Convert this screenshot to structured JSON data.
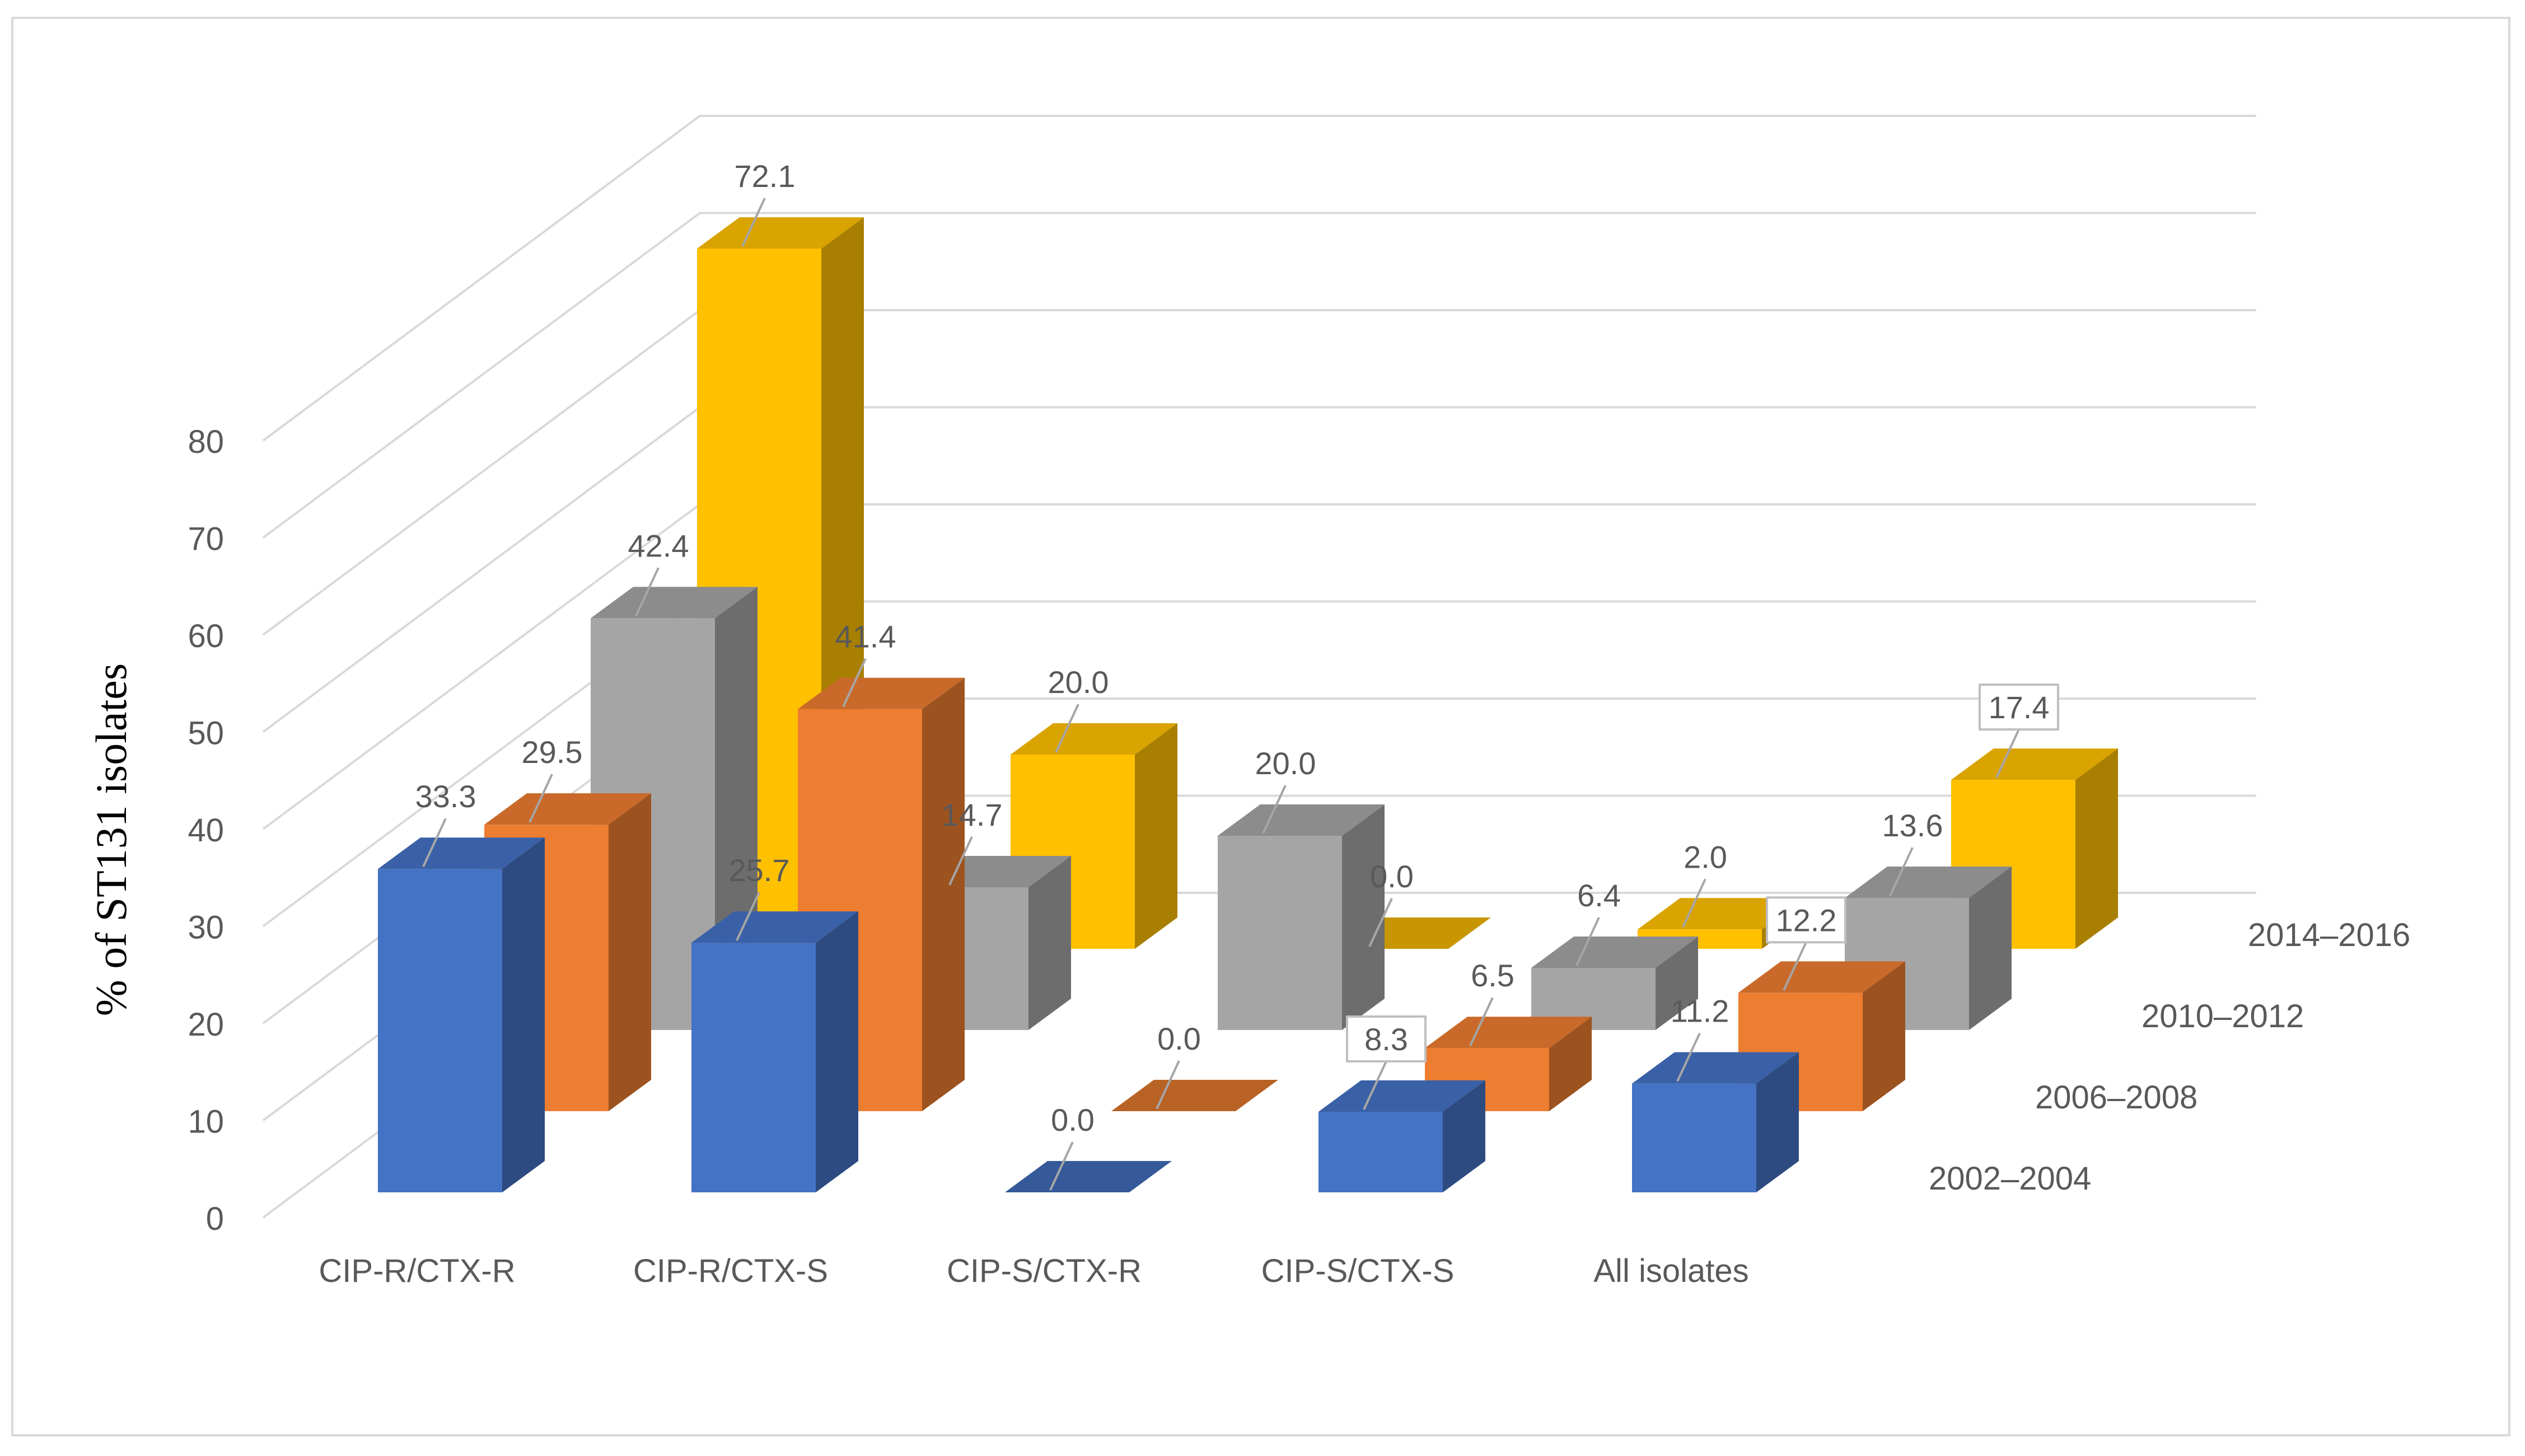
{
  "chart_data": {
    "type": "bar",
    "variant": "3d-clustered-depth",
    "ylabel": "% of ST131 isolates",
    "xlabel": "",
    "ylim": [
      0,
      80
    ],
    "yticks": [
      "0",
      "10",
      "20",
      "30",
      "40",
      "50",
      "60",
      "70",
      "80"
    ],
    "categories": [
      "CIP-R/CTX-R",
      "CIP-R/CTX-S",
      "CIP-S/CTX-R",
      "CIP-S/CTX-S",
      "All isolates"
    ],
    "series": [
      {
        "name": "2002–2004",
        "values": [
          33.3,
          25.7,
          0.0,
          8.3,
          11.2
        ],
        "labels": [
          "33.3",
          "25.7",
          "0.0",
          "8.3",
          "11.2"
        ],
        "color": "#4472c4"
      },
      {
        "name": "2006–2008",
        "values": [
          29.5,
          41.4,
          0.0,
          6.5,
          12.2
        ],
        "labels": [
          "29.5",
          "41.4",
          "0.0",
          "6.5",
          "12.2"
        ],
        "color": "#ed7d31"
      },
      {
        "name": "2010–2012",
        "values": [
          42.4,
          14.7,
          20.0,
          6.4,
          13.6
        ],
        "labels": [
          "42.4",
          "14.7",
          "20.0",
          "6.4",
          "13.6"
        ],
        "color": "#a5a5a5"
      },
      {
        "name": "2014–2016",
        "values": [
          72.1,
          20.0,
          0.0,
          2.0,
          17.4
        ],
        "labels": [
          "72.1",
          "20.0",
          "0.0",
          "2.0",
          "17.4"
        ],
        "color": "#ffc000"
      }
    ],
    "grid": true,
    "legend": "depth-axis-right"
  }
}
